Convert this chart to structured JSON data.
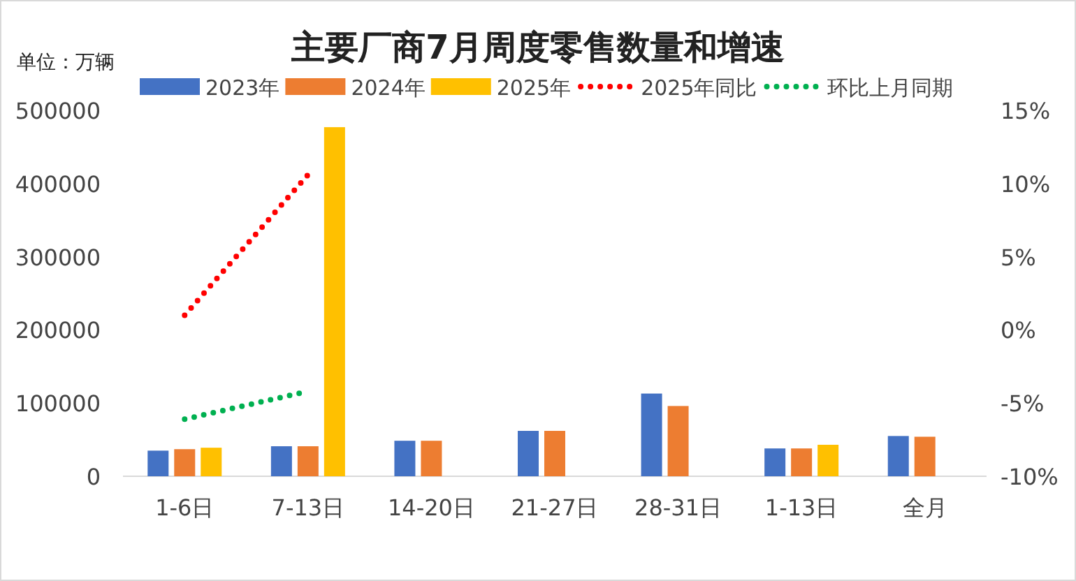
{
  "chart_data": {
    "type": "bar",
    "title": "主要厂商7月周度零售数量和增速",
    "ylabel": "单位：万辆",
    "categories": [
      "1-6日",
      "7-13日",
      "14-20日",
      "21-27日",
      "28-31日",
      "1-13日",
      "全月"
    ],
    "series": [
      {
        "name": "2023年",
        "color": "#4472c4",
        "values": [
          35000,
          41000,
          48500,
          62000,
          113000,
          38000,
          55000
        ]
      },
      {
        "name": "2024年",
        "color": "#ed7d31",
        "values": [
          37000,
          41000,
          48500,
          62000,
          96000,
          38000,
          54000
        ]
      },
      {
        "name": "2025年",
        "color": "#ffc000",
        "values": [
          39000,
          477000,
          null,
          null,
          null,
          43000,
          null
        ]
      },
      {
        "name": "2025年同比",
        "type": "line",
        "axis": "y2",
        "color": "#ff0000",
        "line_style": "dotted",
        "values": [
          1.0,
          10.6,
          null,
          null,
          null,
          null,
          null
        ]
      },
      {
        "name": "环比上月同期",
        "type": "line",
        "axis": "y2",
        "color": "#00b050",
        "line_style": "dotted",
        "values": [
          -6.1,
          -4.2,
          null,
          null,
          null,
          null,
          null
        ]
      }
    ],
    "ylim": [
      0,
      500000
    ],
    "yticks": [
      0,
      100000,
      200000,
      300000,
      400000,
      500000
    ],
    "y2lim": [
      -10,
      15
    ],
    "y2ticks": [
      {
        "value": -10,
        "label": "-10%"
      },
      {
        "value": -5,
        "label": "-5%"
      },
      {
        "value": 0,
        "label": "0%"
      },
      {
        "value": 5,
        "label": "5%"
      },
      {
        "value": 10,
        "label": "10%"
      },
      {
        "value": 15,
        "label": "15%"
      }
    ],
    "grid": false,
    "legend": "top",
    "marker": "none"
  }
}
